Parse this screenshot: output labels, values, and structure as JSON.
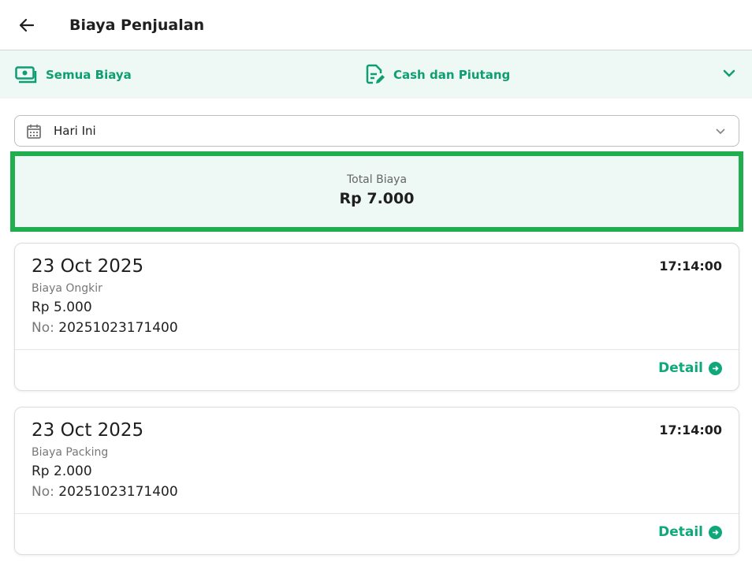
{
  "header": {
    "title": "Biaya Penjualan",
    "back_icon": "arrow-left-icon"
  },
  "filters": {
    "all": "Semua Biaya",
    "payment": "Cash dan Piutang"
  },
  "date_filter": {
    "value": "Hari Ini"
  },
  "total": {
    "label": "Total Biaya",
    "value": "Rp 7.000"
  },
  "colors": {
    "accent": "#0fa87a",
    "highlight_border": "#20ae4f",
    "tint": "#eef8f4"
  },
  "transactions": [
    {
      "date": "23 Oct 2025",
      "time": "17:14:00",
      "type": "Biaya Ongkir",
      "amount": "Rp 5.000",
      "no_label": "No:",
      "no": "20251023171400",
      "detail": "Detail"
    },
    {
      "date": "23 Oct 2025",
      "time": "17:14:00",
      "type": "Biaya Packing",
      "amount": "Rp 2.000",
      "no_label": "No:",
      "no": "20251023171400",
      "detail": "Detail"
    }
  ]
}
